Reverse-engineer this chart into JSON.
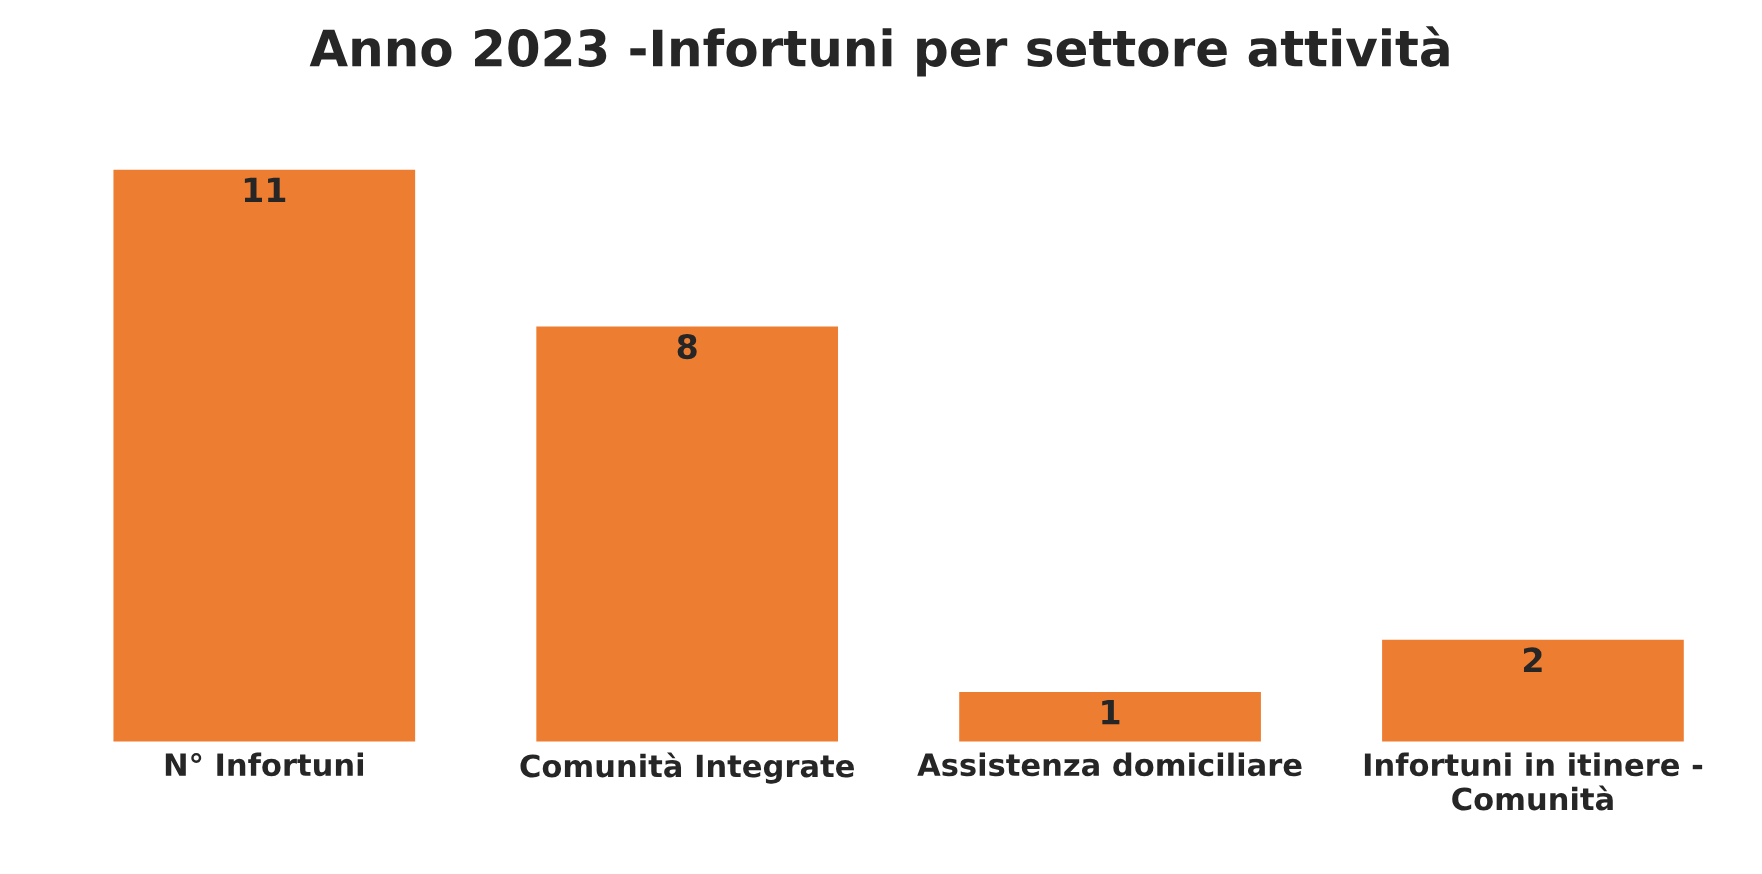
{
  "chart_data": {
    "type": "bar",
    "title": "Anno 2023 -Infortuni per settore attività",
    "categories": [
      "N° Infortuni",
      "Comunità Integrate",
      "Assistenza domiciliare",
      "Infortuni in itinere -\nComunità"
    ],
    "values": [
      11,
      8,
      1,
      2
    ],
    "color": "#ed7d31",
    "data_labels": true,
    "grid": false,
    "legend": false
  }
}
